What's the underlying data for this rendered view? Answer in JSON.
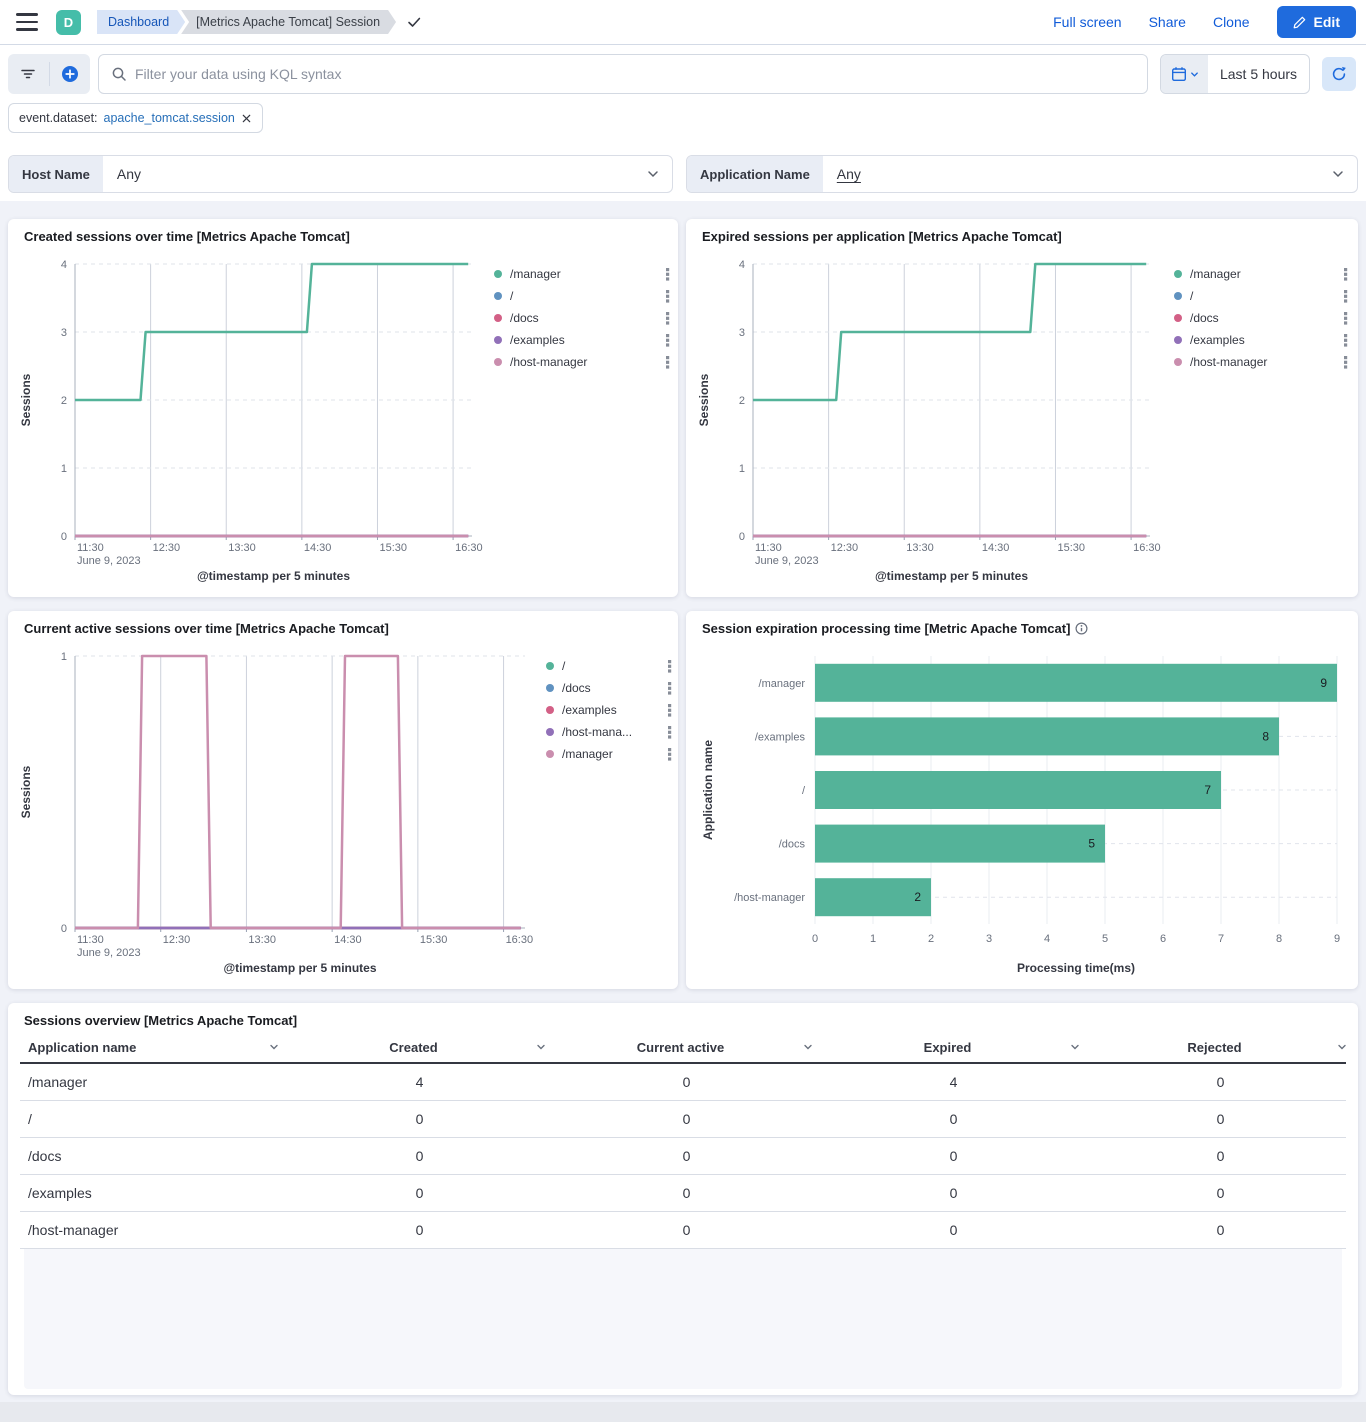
{
  "header": {
    "avatar_initial": "D",
    "breadcrumb_root": "Dashboard",
    "breadcrumb_current": "[Metrics Apache Tomcat] Session",
    "actions": {
      "full_screen": "Full screen",
      "share": "Share",
      "clone": "Clone",
      "edit": "Edit"
    }
  },
  "query_bar": {
    "search_placeholder": "Filter your data using KQL syntax",
    "time_range": "Last 5 hours"
  },
  "filter_pill": {
    "field": "event.dataset:",
    "value": "apache_tomcat.session"
  },
  "controls": [
    {
      "label": "Host Name",
      "value": "Any"
    },
    {
      "label": "Application Name",
      "value": "Any"
    }
  ],
  "colors": {
    "accent_blue": "#1f6bdd",
    "series_green": "#54B399",
    "series_blue": "#6092C0",
    "series_pink": "#D36086",
    "series_purple": "#9170B8",
    "series_mauve": "#CA8EAE"
  },
  "chart_data": [
    {
      "type": "line",
      "panel_title": "Created sessions over time [Metrics Apache Tomcat]",
      "ylabel": "Sessions",
      "xlabel": "@timestamp per 5 minutes",
      "x_tick_labels": [
        "11:30",
        "12:30",
        "13:30",
        "14:30",
        "15:30",
        "16:30"
      ],
      "x_tick_minutes": [
        0,
        60,
        120,
        180,
        240,
        300
      ],
      "x_date_label": "June 9, 2023",
      "xlim_minutes": [
        0,
        315
      ],
      "ylim": [
        0,
        4
      ],
      "y_ticks": [
        0,
        1,
        2,
        3,
        4
      ],
      "legend": [
        {
          "label": "/manager",
          "color": "#54B399"
        },
        {
          "label": "/",
          "color": "#6092C0"
        },
        {
          "label": "/docs",
          "color": "#D36086"
        },
        {
          "label": "/examples",
          "color": "#9170B8"
        },
        {
          "label": "/host-manager",
          "color": "#CA8EAE"
        }
      ],
      "series": [
        {
          "name": "/",
          "color": "#6092C0",
          "points": [
            [
              0,
              0
            ],
            [
              312,
              0
            ]
          ]
        },
        {
          "name": "/docs",
          "color": "#D36086",
          "points": [
            [
              0,
              0
            ],
            [
              312,
              0
            ]
          ]
        },
        {
          "name": "/examples",
          "color": "#9170B8",
          "points": [
            [
              0,
              0
            ],
            [
              312,
              0
            ]
          ]
        },
        {
          "name": "/host-manager",
          "color": "#CA8EAE",
          "points": [
            [
              0,
              0
            ],
            [
              312,
              0
            ]
          ]
        },
        {
          "name": "/manager",
          "color": "#54B399",
          "points": [
            [
              0,
              2
            ],
            [
              52,
              2
            ],
            [
              56,
              3
            ],
            [
              184,
              3
            ],
            [
              188,
              4
            ],
            [
              312,
              4
            ]
          ]
        }
      ]
    },
    {
      "type": "line",
      "panel_title": "Expired sessions per application [Metrics Apache Tomcat]",
      "ylabel": "Sessions",
      "xlabel": "@timestamp per 5 minutes",
      "x_tick_labels": [
        "11:30",
        "12:30",
        "13:30",
        "14:30",
        "15:30",
        "16:30"
      ],
      "x_tick_minutes": [
        0,
        60,
        120,
        180,
        240,
        300
      ],
      "x_date_label": "June 9, 2023",
      "xlim_minutes": [
        0,
        315
      ],
      "ylim": [
        0,
        4
      ],
      "y_ticks": [
        0,
        1,
        2,
        3,
        4
      ],
      "legend": [
        {
          "label": "/manager",
          "color": "#54B399"
        },
        {
          "label": "/",
          "color": "#6092C0"
        },
        {
          "label": "/docs",
          "color": "#D36086"
        },
        {
          "label": "/examples",
          "color": "#9170B8"
        },
        {
          "label": "/host-manager",
          "color": "#CA8EAE"
        }
      ],
      "series": [
        {
          "name": "/",
          "color": "#6092C0",
          "points": [
            [
              0,
              0
            ],
            [
              312,
              0
            ]
          ]
        },
        {
          "name": "/docs",
          "color": "#D36086",
          "points": [
            [
              0,
              0
            ],
            [
              312,
              0
            ]
          ]
        },
        {
          "name": "/examples",
          "color": "#9170B8",
          "points": [
            [
              0,
              0
            ],
            [
              312,
              0
            ]
          ]
        },
        {
          "name": "/host-manager",
          "color": "#CA8EAE",
          "points": [
            [
              0,
              0
            ],
            [
              312,
              0
            ]
          ]
        },
        {
          "name": "/manager",
          "color": "#54B399",
          "points": [
            [
              0,
              2
            ],
            [
              66,
              2
            ],
            [
              70,
              3
            ],
            [
              220,
              3
            ],
            [
              224,
              4
            ],
            [
              312,
              4
            ]
          ]
        }
      ]
    },
    {
      "type": "line",
      "panel_title": "Current active sessions over time [Metrics Apache Tomcat]",
      "ylabel": "Sessions",
      "xlabel": "@timestamp per 5 minutes",
      "x_tick_labels": [
        "11:30",
        "12:30",
        "13:30",
        "14:30",
        "15:30",
        "16:30"
      ],
      "x_tick_minutes": [
        0,
        60,
        120,
        180,
        240,
        300
      ],
      "x_date_label": "June 9, 2023",
      "xlim_minutes": [
        0,
        315
      ],
      "ylim": [
        0,
        1
      ],
      "y_ticks": [
        0,
        1
      ],
      "legend": [
        {
          "label": "/",
          "color": "#54B399"
        },
        {
          "label": "/docs",
          "color": "#6092C0"
        },
        {
          "label": "/examples",
          "color": "#D36086"
        },
        {
          "label": "/host-mana...",
          "color": "#9170B8"
        },
        {
          "label": "/manager",
          "color": "#CA8EAE"
        }
      ],
      "series": [
        {
          "name": "/",
          "color": "#54B399",
          "points": [
            [
              0,
              0
            ],
            [
              312,
              0
            ]
          ]
        },
        {
          "name": "/docs",
          "color": "#6092C0",
          "points": [
            [
              0,
              0
            ],
            [
              312,
              0
            ]
          ]
        },
        {
          "name": "/examples",
          "color": "#D36086",
          "points": [
            [
              0,
              0
            ],
            [
              312,
              0
            ]
          ]
        },
        {
          "name": "/host-manager",
          "color": "#9170B8",
          "points": [
            [
              0,
              0
            ],
            [
              312,
              0
            ]
          ]
        },
        {
          "name": "/manager",
          "color": "#CA8EAE",
          "points": [
            [
              0,
              0
            ],
            [
              44,
              0
            ],
            [
              47,
              1
            ],
            [
              92,
              1
            ],
            [
              95,
              0
            ],
            [
              186,
              0
            ],
            [
              189,
              1
            ],
            [
              226,
              1
            ],
            [
              229,
              0
            ],
            [
              312,
              0
            ]
          ]
        }
      ]
    },
    {
      "type": "bar",
      "panel_title": "Session expiration processing time [Metric Apache Tomcat]",
      "has_info_icon": true,
      "categories": [
        "/manager",
        "/examples",
        "/",
        "/docs",
        "/host-manager"
      ],
      "values": [
        9,
        8,
        7,
        5,
        2
      ],
      "bar_color": "#54B399",
      "x_ticks": [
        0,
        1,
        2,
        3,
        4,
        5,
        6,
        7,
        8,
        9
      ],
      "xlim": [
        0,
        9
      ],
      "xlabel": "Processing time(ms)",
      "ylabel": "Application name"
    }
  ],
  "table_panel": {
    "title": "Sessions overview [Metrics Apache Tomcat]",
    "columns": [
      "Application name",
      "Created",
      "Current active",
      "Expired",
      "Rejected"
    ],
    "rows": [
      [
        "/manager",
        "4",
        "0",
        "4",
        "0"
      ],
      [
        "/",
        "0",
        "0",
        "0",
        "0"
      ],
      [
        "/docs",
        "0",
        "0",
        "0",
        "0"
      ],
      [
        "/examples",
        "0",
        "0",
        "0",
        "0"
      ],
      [
        "/host-manager",
        "0",
        "0",
        "0",
        "0"
      ]
    ]
  }
}
